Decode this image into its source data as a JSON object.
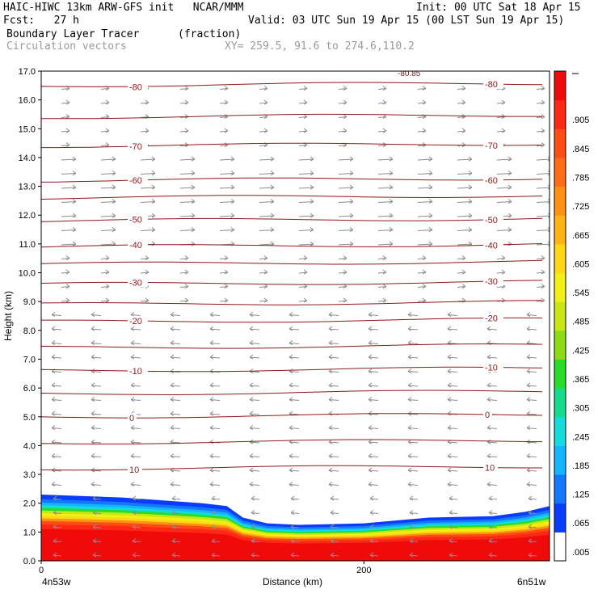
{
  "header": {
    "line1_left": "HAIC-HIWC 13km ARW-GFS init   NCAR/MMM",
    "line1_right": "Init: 00 UTC Sat 18 Apr 15",
    "fcst_left": "Fcst:   27 h",
    "valid_right": "Valid: 03 UTC Sun 19 Apr 15 (00 LST Sun 19 Apr 15)",
    "field_name": "Boundary Layer Tracer",
    "field_units": "(fraction)",
    "vectors_label": "Circulation vectors",
    "xy_label": "XY= 259.5, 91.6 to 274.6,110.2"
  },
  "chart_data": {
    "type": "cross-section",
    "ylabel": "Height (km)",
    "xlabel": "Distance (km)",
    "ylim": [
      0,
      17
    ],
    "xlim": [
      0,
      315
    ],
    "y_ticks": [
      "0.0",
      "1.0",
      "2.0",
      "3.0",
      "4.0",
      "5.0",
      "6.0",
      "7.0",
      "8.0",
      "9.0",
      "10.0",
      "11.0",
      "12.0",
      "13.0",
      "14.0",
      "15.0",
      "16.0",
      "17.0"
    ],
    "x_ticks": [
      {
        "value": 0,
        "label": "0"
      },
      {
        "value": 200,
        "label": "200"
      }
    ],
    "left_end_label": "4n53w",
    "right_end_label": "6n51w",
    "temperature_contours": [
      {
        "height": 16.5,
        "label": "-80"
      },
      {
        "height": 15.4,
        "label": ""
      },
      {
        "height": 14.4,
        "label": "-70"
      },
      {
        "height": 13.2,
        "label": "-60"
      },
      {
        "height": 12.6,
        "label": ""
      },
      {
        "height": 11.8,
        "label": "-50"
      },
      {
        "height": 10.9,
        "label": "-40"
      },
      {
        "height": 10.3,
        "label": ""
      },
      {
        "height": 9.6,
        "label": "-30"
      },
      {
        "height": 8.9,
        "label": ""
      },
      {
        "height": 8.3,
        "label": "-20"
      },
      {
        "height": 7.4,
        "label": ""
      },
      {
        "height": 6.6,
        "label": "-10"
      },
      {
        "height": 5.8,
        "label": ""
      },
      {
        "height": 5.0,
        "label": "0"
      },
      {
        "height": 4.1,
        "label": ""
      },
      {
        "height": 3.2,
        "label": "10"
      }
    ],
    "top_contour_label": "-80.85",
    "boundary_layer_profile": {
      "x": [
        0,
        50,
        100,
        115,
        125,
        140,
        160,
        200,
        240,
        280,
        300,
        315
      ],
      "top_height": [
        2.3,
        2.2,
        2.0,
        1.9,
        1.5,
        1.3,
        1.25,
        1.3,
        1.5,
        1.55,
        1.7,
        1.9
      ]
    },
    "colorbar": {
      "labels": [
        ".005",
        ".065",
        ".125",
        ".185",
        ".245",
        ".305",
        ".365",
        ".425",
        ".485",
        ".545",
        ".605",
        ".665",
        ".725",
        ".785",
        ".845",
        ".905"
      ],
      "colors": [
        "#ffffff",
        "#0a3cff",
        "#1478ff",
        "#14b4ff",
        "#14dcdc",
        "#14dc8c",
        "#28dc28",
        "#8cdc14",
        "#c8e614",
        "#f0f014",
        "#ffd714",
        "#ffb414",
        "#ff9114",
        "#ff6e14",
        "#ff4b14",
        "#ff2814",
        "#f00a0a"
      ]
    },
    "background_color": "#ffffff",
    "contour_color": "#8b1a1a",
    "vector_color": "#8c8c8c"
  }
}
